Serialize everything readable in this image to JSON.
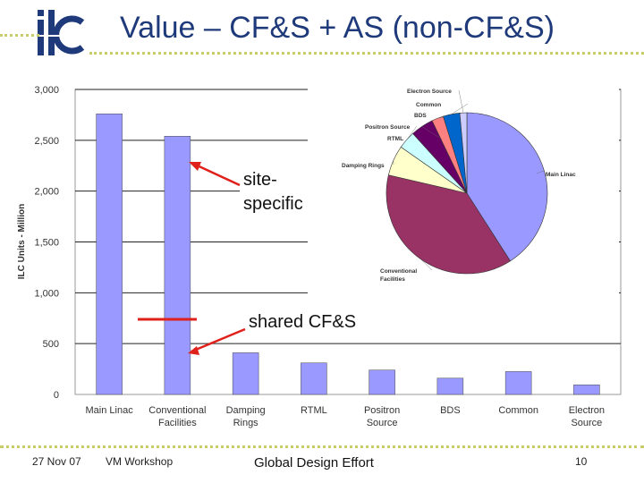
{
  "slide": {
    "title": "Value – CF&S + AS (non-CF&S)",
    "annotations": {
      "site_specific": [
        "site-",
        "specific"
      ],
      "shared": "shared CF&S"
    },
    "footer": {
      "date": "27 Nov 07",
      "event": "VM Workshop",
      "org": "Global Design Effort",
      "page": "10"
    },
    "colors": {
      "title": "#1f3a7a",
      "bar": "#9999ff",
      "arrow": "#e0201a",
      "dots": "#c8cc6a"
    }
  },
  "chart_data": [
    {
      "type": "bar",
      "ylabel": "ILC Units - Million",
      "ylim": [
        0,
        3000
      ],
      "yticks": [
        "0",
        "500",
        "1,000",
        "1,500",
        "2,000",
        "2,500",
        "3,000"
      ],
      "categories": [
        [
          "Main Linac"
        ],
        [
          "Conventional",
          "Facilities"
        ],
        [
          "Damping",
          "Rings"
        ],
        [
          "RTML"
        ],
        [
          "Positron",
          "Source"
        ],
        [
          "BDS"
        ],
        [
          "Common"
        ],
        [
          "Electron",
          "Source"
        ]
      ],
      "values": [
        2760,
        2540,
        410,
        310,
        240,
        160,
        225,
        95
      ]
    },
    {
      "type": "pie",
      "labels": [
        [
          "Main Linac"
        ],
        [
          "Conventional",
          "Facilities"
        ],
        [
          "Damping Rings"
        ],
        [
          "Positron Source"
        ],
        [
          "RTML"
        ],
        [
          "BDS"
        ],
        [
          "Common"
        ],
        [
          "Electron Source"
        ]
      ],
      "values": [
        2760,
        2540,
        410,
        240,
        310,
        160,
        225,
        95
      ],
      "colors": [
        "#9999ff",
        "#993366",
        "#ffffcc",
        "#ccffff",
        "#660066",
        "#ff8080",
        "#0066cc",
        "#ccccff"
      ]
    }
  ]
}
